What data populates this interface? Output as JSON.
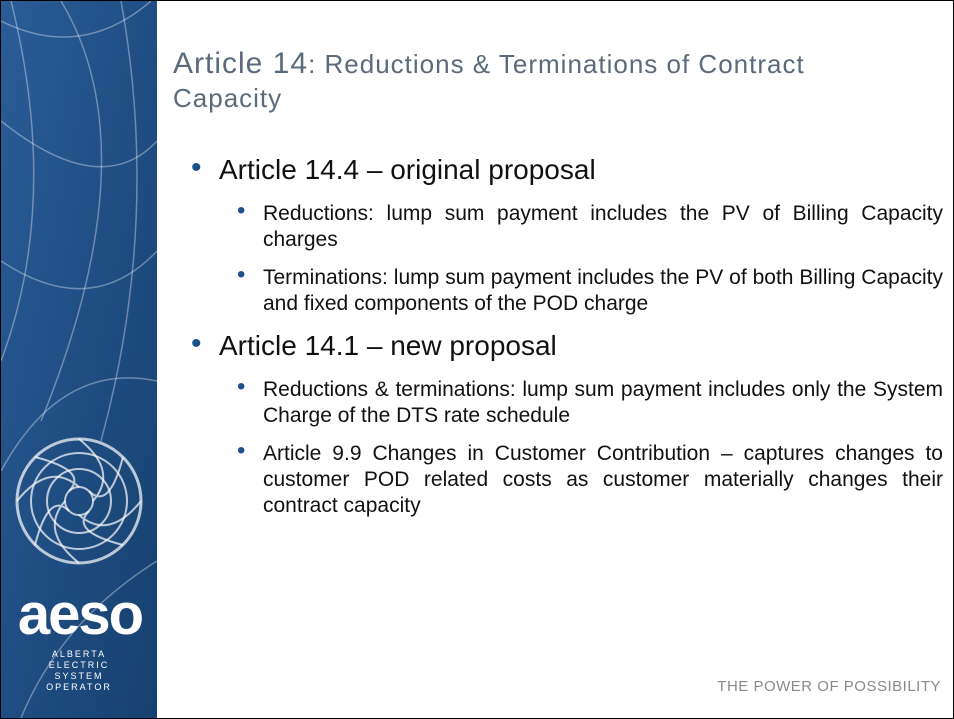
{
  "title": {
    "lead": "Article 14",
    "rest": ": Reductions & Terminations of Contract Capacity"
  },
  "bullets": [
    {
      "text": "Article 14.4 – original proposal",
      "items": [
        "Reductions: lump sum payment includes the PV of Billing Capacity charges",
        "Terminations: lump sum payment includes the PV of both Billing Capacity and fixed components of the POD charge"
      ]
    },
    {
      "text": "Article 14.1 – new proposal",
      "items": [
        "Reductions & terminations: lump sum payment includes only the System Charge of the DTS rate schedule",
        "Article 9.9 Changes in Customer Contribution – captures changes to customer POD related costs as customer materially changes their contract capacity"
      ]
    }
  ],
  "logo": {
    "name": "aeso",
    "lines": [
      "ALBERTA",
      "ELECTRIC",
      "SYSTEM",
      "OPERATOR"
    ]
  },
  "tagline": "THE POWER OF POSSIBILITY"
}
